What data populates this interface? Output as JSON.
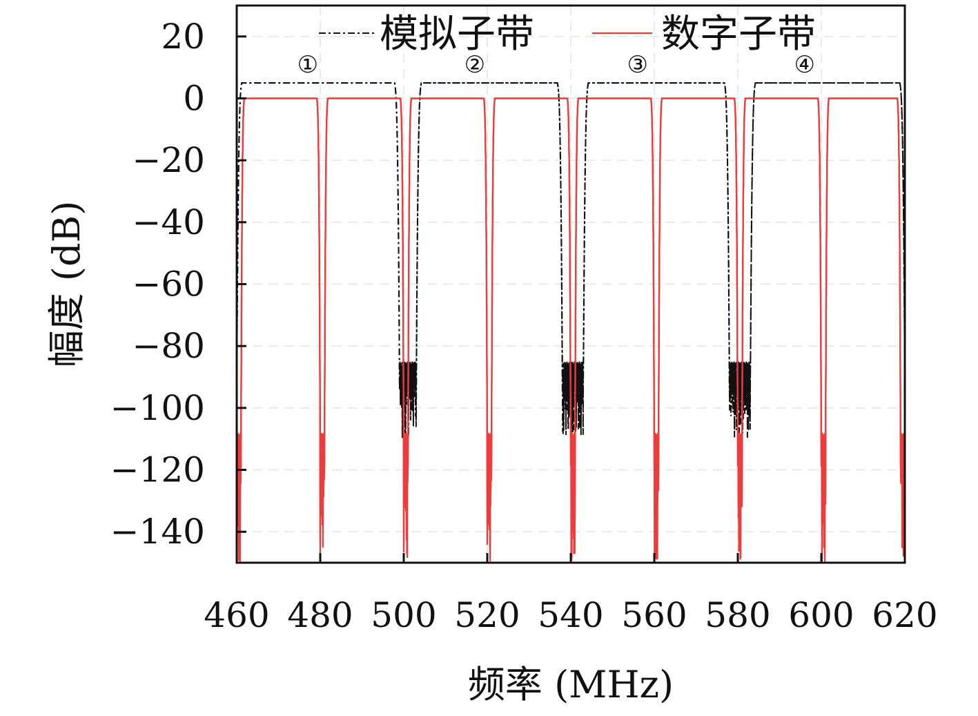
{
  "chart_data": {
    "type": "line",
    "title": "",
    "xlabel": "频率 (MHz)",
    "ylabel": "幅度 (dB)",
    "xlim": [
      460,
      620
    ],
    "ylim": [
      -150,
      30
    ],
    "xticks": [
      460,
      480,
      500,
      520,
      540,
      560,
      580,
      600,
      620
    ],
    "xtick_labels": [
      "460",
      "480",
      "500",
      "520",
      "540",
      "560",
      "580",
      "600",
      "620"
    ],
    "yticks": [
      20,
      0,
      -20,
      -40,
      -60,
      -80,
      -100,
      -120,
      -140
    ],
    "ytick_labels": [
      "20",
      "0",
      "−20",
      "−40",
      "−60",
      "−80",
      "−100",
      "−120",
      "−140"
    ],
    "grid": true,
    "legend_position": "top",
    "series": [
      {
        "name": "模拟子带",
        "color": "#111111",
        "style": "dash-dot",
        "passband_level_db": 5,
        "stopband_ripple_db": [
          -85,
          -110
        ],
        "passbands_mhz": [
          [
            460,
            499
          ],
          [
            503,
            538
          ],
          [
            543,
            578
          ],
          [
            583,
            620
          ]
        ]
      },
      {
        "name": "数字子带",
        "color": "#ee3b3b",
        "style": "solid",
        "passband_level_db": 0,
        "stopband_ripple_db": [
          -108,
          -150
        ],
        "passbands_mhz": [
          [
            461,
            480
          ],
          [
            481,
            500
          ],
          [
            501,
            520
          ],
          [
            521,
            540
          ],
          [
            541,
            560
          ],
          [
            561,
            580
          ],
          [
            581,
            600
          ],
          [
            601,
            619
          ]
        ]
      }
    ],
    "annotations": [
      {
        "text": "①",
        "x": 477,
        "y": 11
      },
      {
        "text": "②",
        "x": 517,
        "y": 11
      },
      {
        "text": "③",
        "x": 556,
        "y": 11
      },
      {
        "text": "④",
        "x": 596,
        "y": 11
      }
    ]
  }
}
